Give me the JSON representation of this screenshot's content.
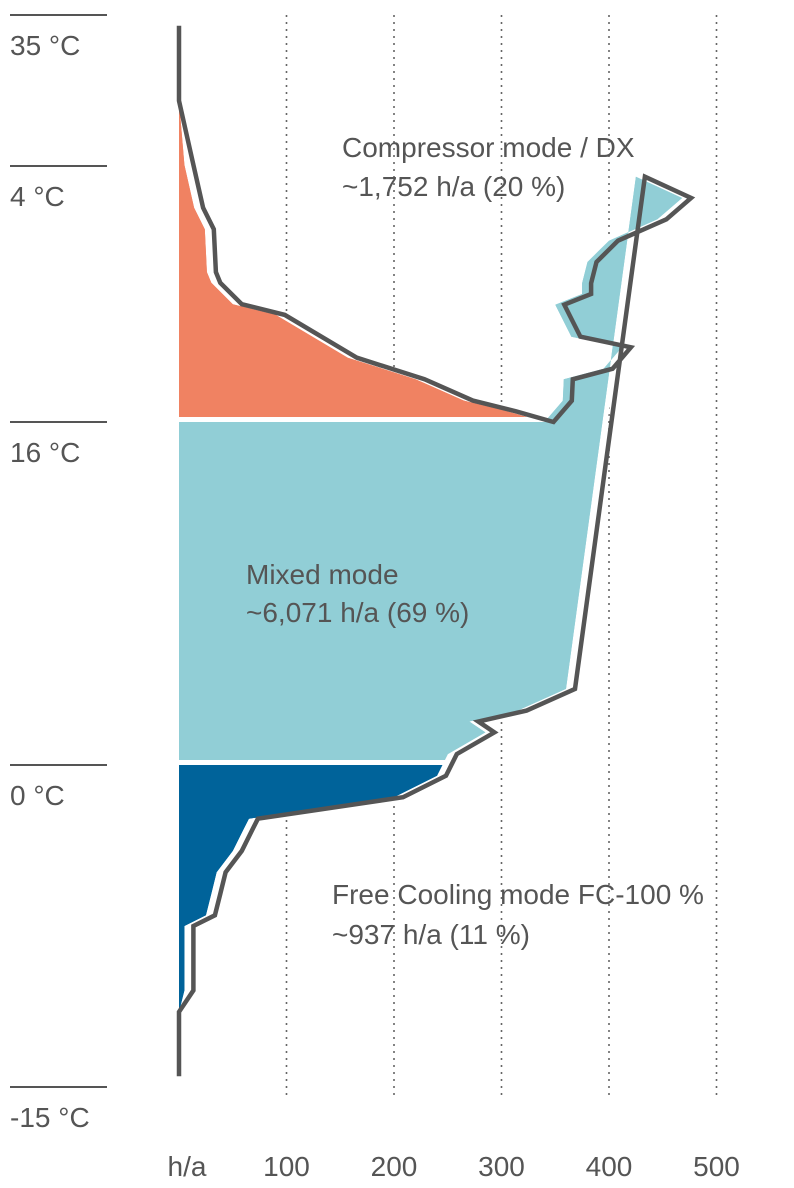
{
  "chart_data": {
    "type": "area",
    "x_unit_label": "h/a",
    "x_ticks": [
      100,
      200,
      300,
      400,
      500
    ],
    "xlim": [
      0,
      500
    ],
    "ylim": [
      -15,
      37
    ],
    "y_markers": [
      {
        "value": 35,
        "label": "35 °C"
      },
      {
        "value": 16,
        "label": "16 °C"
      },
      {
        "value": 4,
        "label": "4 °C"
      },
      {
        "value": 0,
        "label": "0 °C"
      },
      {
        "value": -15,
        "label": "-15 °C"
      }
    ],
    "grid": "vertical dotted",
    "distribution": {
      "note": "hours per year (x) at each outdoor temperature (y, °C)",
      "points": [
        {
          "t": 34.5,
          "h": 0
        },
        {
          "t": 31.0,
          "h": 0
        },
        {
          "t": 28.0,
          "h": 5
        },
        {
          "t": 26.0,
          "h": 14
        },
        {
          "t": 25.0,
          "h": 24
        },
        {
          "t": 23.0,
          "h": 26
        },
        {
          "t": 22.5,
          "h": 30
        },
        {
          "t": 21.5,
          "h": 50
        },
        {
          "t": 21.0,
          "h": 90
        },
        {
          "t": 19.0,
          "h": 157
        },
        {
          "t": 18.0,
          "h": 220
        },
        {
          "t": 17.0,
          "h": 265
        },
        {
          "t": 16.5,
          "h": 305
        },
        {
          "t": 16.0,
          "h": 340
        },
        {
          "t": 15.0,
          "h": 357
        },
        {
          "t": 14.0,
          "h": 358
        },
        {
          "t": 13.5,
          "h": 395
        },
        {
          "t": 12.5,
          "h": 412
        },
        {
          "t": 12.0,
          "h": 365
        },
        {
          "t": 10.5,
          "h": 350
        },
        {
          "t": 10.0,
          "h": 375
        },
        {
          "t": 9.5,
          "h": 375
        },
        {
          "t": 8.5,
          "h": 380
        },
        {
          "t": 8.0,
          "h": 390
        },
        {
          "t": 7.5,
          "h": 400
        },
        {
          "t": 6.5,
          "h": 445
        },
        {
          "t": 5.5,
          "h": 468
        },
        {
          "t": 4.5,
          "h": 425
        },
        {
          "t": 3.5,
          "h": 360
        },
        {
          "t": 2.5,
          "h": 315
        },
        {
          "t": 2.0,
          "h": 270
        },
        {
          "t": 1.5,
          "h": 285
        },
        {
          "t": 0.5,
          "h": 250
        },
        {
          "t": -0.5,
          "h": 240
        },
        {
          "t": -1.5,
          "h": 200
        },
        {
          "t": -2.5,
          "h": 65
        },
        {
          "t": -3.0,
          "h": 60
        },
        {
          "t": -4.0,
          "h": 50
        },
        {
          "t": -5.0,
          "h": 35
        },
        {
          "t": -6.0,
          "h": 30
        },
        {
          "t": -7.0,
          "h": 25
        },
        {
          "t": -7.5,
          "h": 5
        },
        {
          "t": -8.5,
          "h": 5
        },
        {
          "t": -10.5,
          "h": 5
        },
        {
          "t": -11.5,
          "h": 0
        },
        {
          "t": -14.5,
          "h": 0
        }
      ]
    },
    "series": [
      {
        "name": "Compressor mode / DX",
        "detail": "~1,752 h/a (20 %)",
        "color": "#F08262",
        "t_range": [
          16,
          36
        ]
      },
      {
        "name": "Mixed mode",
        "detail": "~6,071 h/a (69 %)",
        "color": "#91CED6",
        "t_range": [
          0,
          16
        ]
      },
      {
        "name": "Free Cooling mode FC-100 %",
        "detail": "~937 h/a (11 %)",
        "color": "#00639A",
        "t_range": [
          -15,
          0
        ]
      }
    ],
    "outline_color": "#555555"
  }
}
